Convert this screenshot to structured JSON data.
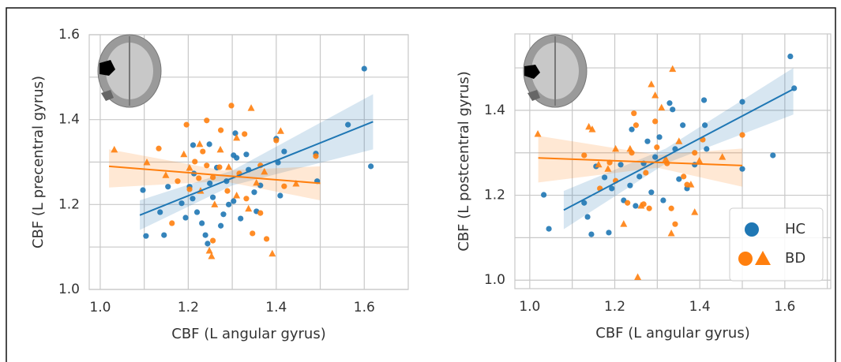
{
  "chart_data": [
    {
      "type": "scatter",
      "x_label": "CBF (L angular gyrus)",
      "y_label": "CBF (L precentral gyrus)",
      "xlim": [
        0.975,
        1.7
      ],
      "ylim": [
        1.0,
        1.6
      ],
      "xticks": [
        {
          "value": 1.0,
          "label": "1.0"
        },
        1.2,
        1.4,
        1.6
      ],
      "xminor": [
        1.1,
        1.3,
        1.5
      ],
      "yticks": [
        {
          "value": 1.0,
          "label": "1.0"
        },
        1.2,
        1.4,
        1.6
      ],
      "yminor": [
        1.1,
        1.3,
        1.5
      ],
      "grid": true,
      "series": [
        {
          "color": "#1f77b4",
          "marker": "circle",
          "x": [
            1.6,
            1.615,
            1.563,
            1.493,
            1.49,
            1.097,
            1.104,
            1.145,
            1.136,
            1.154,
            1.185,
            1.194,
            1.203,
            1.21,
            1.213,
            1.22,
            1.231,
            1.239,
            1.244,
            1.249,
            1.248,
            1.256,
            1.265,
            1.274,
            1.28,
            1.287,
            1.292,
            1.303,
            1.307,
            1.31,
            1.319,
            1.332,
            1.337,
            1.35,
            1.355,
            1.364,
            1.4,
            1.404,
            1.409,
            1.418,
            1.303,
            1.211
          ],
          "values": [
            1.52,
            1.29,
            1.388,
            1.255,
            1.32,
            1.234,
            1.126,
            1.128,
            1.182,
            1.242,
            1.203,
            1.169,
            1.242,
            1.214,
            1.273,
            1.182,
            1.156,
            1.128,
            1.108,
            1.25,
            1.342,
            1.217,
            1.287,
            1.15,
            1.177,
            1.255,
            1.2,
            1.208,
            1.368,
            1.31,
            1.167,
            1.318,
            1.282,
            1.229,
            1.184,
            1.245,
            1.355,
            1.299,
            1.221,
            1.325,
            1.316,
            1.34
          ],
          "fit": {
            "x": [
              1.09,
              1.62
            ],
            "y": [
              1.175,
              1.395
            ],
            "band_x": [
              1.09,
              1.3,
              1.62
            ],
            "band_lower": [
              1.14,
              1.245,
              1.33
            ],
            "band_upper": [
              1.21,
              1.28,
              1.46
            ]
          }
        },
        {
          "color": "#ff7f0e",
          "marker": "circle",
          "x": [
            1.133,
            1.196,
            1.242,
            1.298,
            1.233,
            1.242,
            1.256,
            1.215,
            1.203,
            1.163,
            1.224,
            1.271,
            1.289,
            1.316,
            1.346,
            1.364,
            1.378,
            1.328,
            1.332,
            1.4,
            1.418,
            1.49,
            1.256,
            1.364,
            1.274,
            1.176
          ],
          "values": [
            1.332,
            1.388,
            1.398,
            1.433,
            1.325,
            1.292,
            1.264,
            1.301,
            1.236,
            1.156,
            1.262,
            1.288,
            1.232,
            1.273,
            1.132,
            1.18,
            1.119,
            1.366,
            1.214,
            1.351,
            1.243,
            1.314,
            1.115,
            1.292,
            1.375,
            1.255
          ],
          "fit": {
            "x": [
              1.02,
              1.5
            ],
            "y": [
              1.29,
              1.25
            ],
            "band_x": [
              1.02,
              1.28,
              1.5
            ],
            "band_lower": [
              1.24,
              1.255,
              1.21
            ],
            "band_upper": [
              1.33,
              1.28,
              1.29
            ]
          }
        },
        {
          "color": "#ff7f0e",
          "marker": "triangle",
          "x": [
            1.032,
            1.106,
            1.149,
            1.19,
            1.226,
            1.248,
            1.253,
            1.26,
            1.292,
            1.31,
            1.343,
            1.355,
            1.373,
            1.391,
            1.41,
            1.445,
            1.31,
            1.337,
            1.203,
            1.273,
            1.228
          ],
          "values": [
            1.329,
            1.299,
            1.269,
            1.318,
            1.342,
            1.091,
            1.078,
            1.2,
            1.288,
            1.357,
            1.427,
            1.251,
            1.277,
            1.084,
            1.373,
            1.249,
            1.221,
            1.19,
            1.286,
            1.329,
            1.232
          ]
        }
      ]
    },
    {
      "type": "scatter",
      "x_label": "CBF (L angular gyrus)",
      "y_label": "CBF (L postcentral gyrus)",
      "xlim": [
        0.965,
        1.708
      ],
      "ylim": [
        0.98,
        1.58
      ],
      "xticks": [
        {
          "value": 1.0,
          "label": "1.0"
        },
        1.2,
        1.4,
        1.6
      ],
      "xminor": [
        1.1,
        1.3,
        1.5,
        1.7
      ],
      "yticks": [
        {
          "value": 1.0,
          "label": "1.0"
        },
        1.2,
        1.4
      ],
      "yminor": [
        1.1,
        1.3,
        1.5
      ],
      "grid": true,
      "legend": "lower right",
      "series": [
        {
          "name": "HC",
          "color": "#1f77b4",
          "marker": "circle",
          "x": [
            1.613,
            1.622,
            1.5,
            1.572,
            1.5,
            1.033,
            1.045,
            1.136,
            1.145,
            1.186,
            1.128,
            1.156,
            1.176,
            1.193,
            1.214,
            1.221,
            1.24,
            1.236,
            1.249,
            1.258,
            1.277,
            1.286,
            1.295,
            1.314,
            1.329,
            1.336,
            1.342,
            1.351,
            1.36,
            1.37,
            1.388,
            1.41,
            1.412,
            1.416,
            1.305,
            1.268
          ],
          "values": [
            1.527,
            1.452,
            1.42,
            1.294,
            1.262,
            1.201,
            1.121,
            1.149,
            1.108,
            1.112,
            1.182,
            1.268,
            1.242,
            1.216,
            1.272,
            1.188,
            1.355,
            1.223,
            1.175,
            1.244,
            1.327,
            1.207,
            1.29,
            1.188,
            1.417,
            1.402,
            1.309,
            1.238,
            1.365,
            1.216,
            1.272,
            1.424,
            1.365,
            1.309,
            1.337,
            1.275
          ],
          "fit": {
            "x": [
              1.08,
              1.62
            ],
            "y": [
              1.165,
              1.45
            ],
            "band_x": [
              1.08,
              1.32,
              1.62
            ],
            "band_lower": [
              1.12,
              1.275,
              1.39
            ],
            "band_upper": [
              1.21,
              1.31,
              1.5
            ]
          }
        },
        {
          "name": "BD",
          "color": "#ff7f0e",
          "marker": "circle",
          "x": [
            1.188,
            1.245,
            1.25,
            1.202,
            1.24,
            1.268,
            1.295,
            1.299,
            1.323,
            1.333,
            1.342,
            1.362,
            1.37,
            1.388,
            1.407,
            1.5,
            1.128,
            1.165,
            1.23,
            1.281,
            1.273
          ],
          "values": [
            1.277,
            1.393,
            1.365,
            1.234,
            1.3,
            1.179,
            1.374,
            1.313,
            1.275,
            1.169,
            1.132,
            1.244,
            1.225,
            1.3,
            1.331,
            1.342,
            1.294,
            1.216,
            1.182,
            1.169,
            1.253
          ],
          "fit": {
            "x": [
              1.02,
              1.5
            ],
            "y": [
              1.288,
              1.27
            ],
            "band_x": [
              1.02,
              1.3,
              1.5
            ],
            "band_lower": [
              1.23,
              1.265,
              1.22
            ],
            "band_upper": [
              1.34,
              1.295,
              1.31
            ]
          }
        },
        {
          "color": "#ff7f0e",
          "marker": "triangle",
          "x": [
            1.019,
            1.139,
            1.147,
            1.162,
            1.184,
            1.202,
            1.236,
            1.254,
            1.262,
            1.286,
            1.295,
            1.31,
            1.32,
            1.336,
            1.333,
            1.351,
            1.379,
            1.388,
            1.399,
            1.453,
            1.221
          ],
          "values": [
            1.344,
            1.361,
            1.355,
            1.272,
            1.262,
            1.309,
            1.309,
            1.007,
            1.175,
            1.461,
            1.435,
            1.406,
            1.285,
            1.497,
            1.11,
            1.327,
            1.225,
            1.16,
            1.281,
            1.29,
            1.132
          ]
        }
      ]
    }
  ]
}
